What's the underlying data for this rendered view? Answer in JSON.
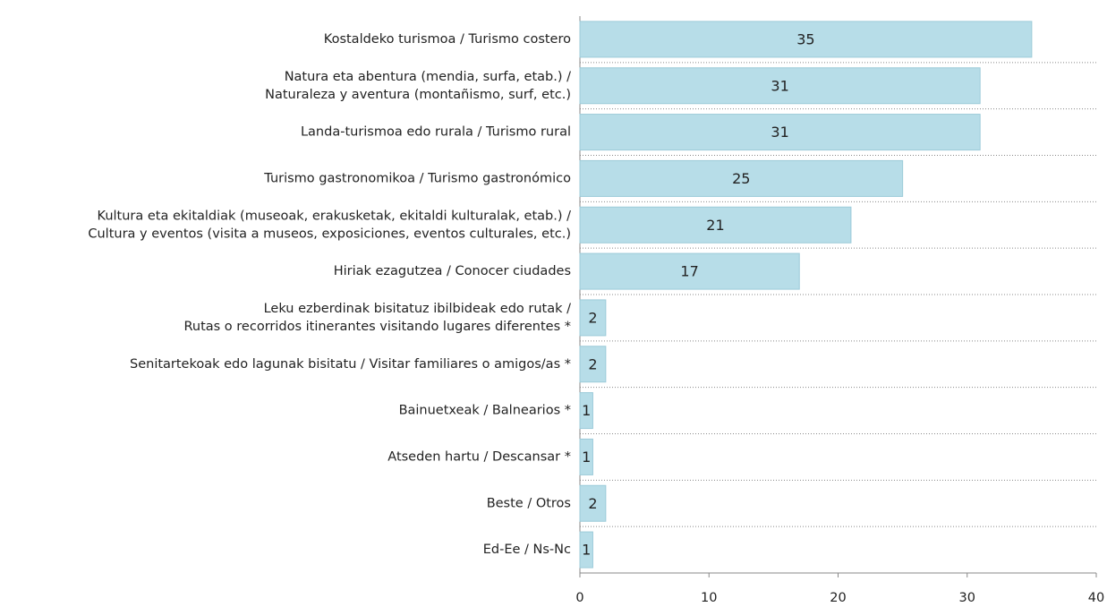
{
  "chart_data": {
    "type": "bar",
    "orientation": "horizontal",
    "categories": [
      [
        "Kostaldeko turismoa / Turismo costero"
      ],
      [
        "Natura eta abentura (mendia, surfa, etab.) /",
        "Naturaleza y aventura (montañismo, surf, etc.)"
      ],
      [
        "Landa-turismoa edo rurala / Turismo rural"
      ],
      [
        "Turismo gastronomikoa / Turismo gastronómico"
      ],
      [
        "Kultura eta ekitaldiak (museoak, erakusketak, ekitaldi kulturalak, etab.) /",
        "Cultura y eventos (visita a museos, exposiciones, eventos culturales, etc.)"
      ],
      [
        "Hiriak ezagutzea / Conocer ciudades"
      ],
      [
        "Leku ezberdinak bisitatuz ibilbideak edo rutak /",
        "Rutas o recorridos itinerantes visitando lugares diferentes *"
      ],
      [
        "Senitartekoak edo lagunak bisitatu / Visitar familiares o amigos/as *"
      ],
      [
        "Bainuetxeak / Balnearios *"
      ],
      [
        "Atseden hartu / Descansar *"
      ],
      [
        "Beste / Otros"
      ],
      [
        "Ed-Ee / Ns-Nc"
      ]
    ],
    "values": [
      35,
      31,
      31,
      25,
      21,
      17,
      2,
      2,
      1,
      1,
      2,
      1
    ],
    "color": "#b7dde8",
    "xlim": [
      0,
      40
    ],
    "xticks": [
      0,
      10,
      20,
      30,
      40
    ]
  }
}
